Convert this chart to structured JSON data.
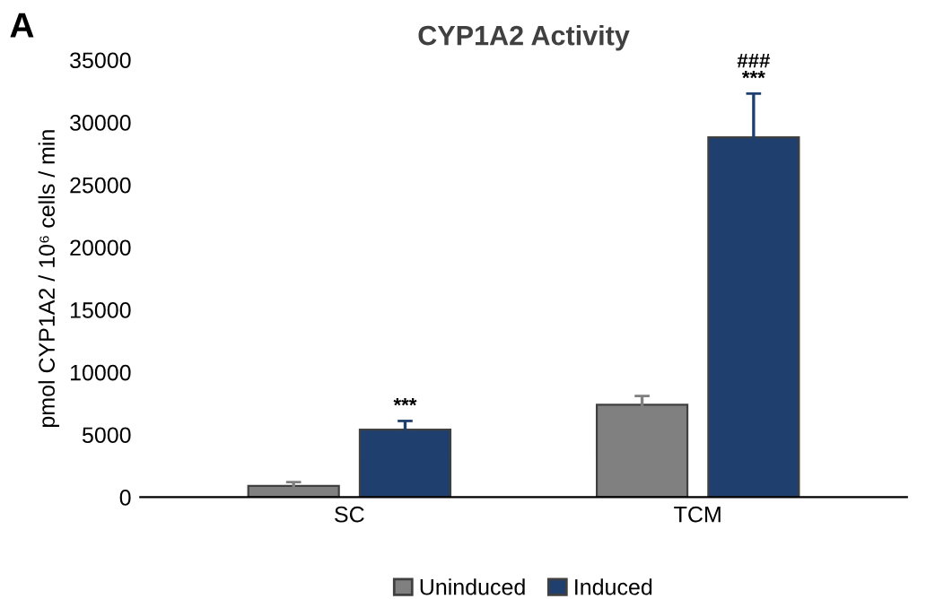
{
  "chart_data": {
    "type": "bar",
    "title": "CYP1A2 Activity",
    "ylabel": "pmol CYP1A2 / 10⁶ cells / min",
    "categories": [
      "SC",
      "TCM"
    ],
    "series": [
      {
        "name": "Uninduced",
        "color": "#808080",
        "values": [
          900,
          7400
        ],
        "errors": [
          300,
          700
        ]
      },
      {
        "name": "Induced",
        "color": "#1f3f6e",
        "values": [
          5400,
          28800
        ],
        "errors": [
          700,
          3500
        ]
      }
    ],
    "ylim": [
      0,
      35000
    ],
    "yticks": [
      0,
      5000,
      10000,
      15000,
      20000,
      25000,
      30000,
      35000
    ],
    "grid": false,
    "legend": "bottom",
    "annotations": [
      "A",
      "***",
      "###\n***"
    ]
  }
}
